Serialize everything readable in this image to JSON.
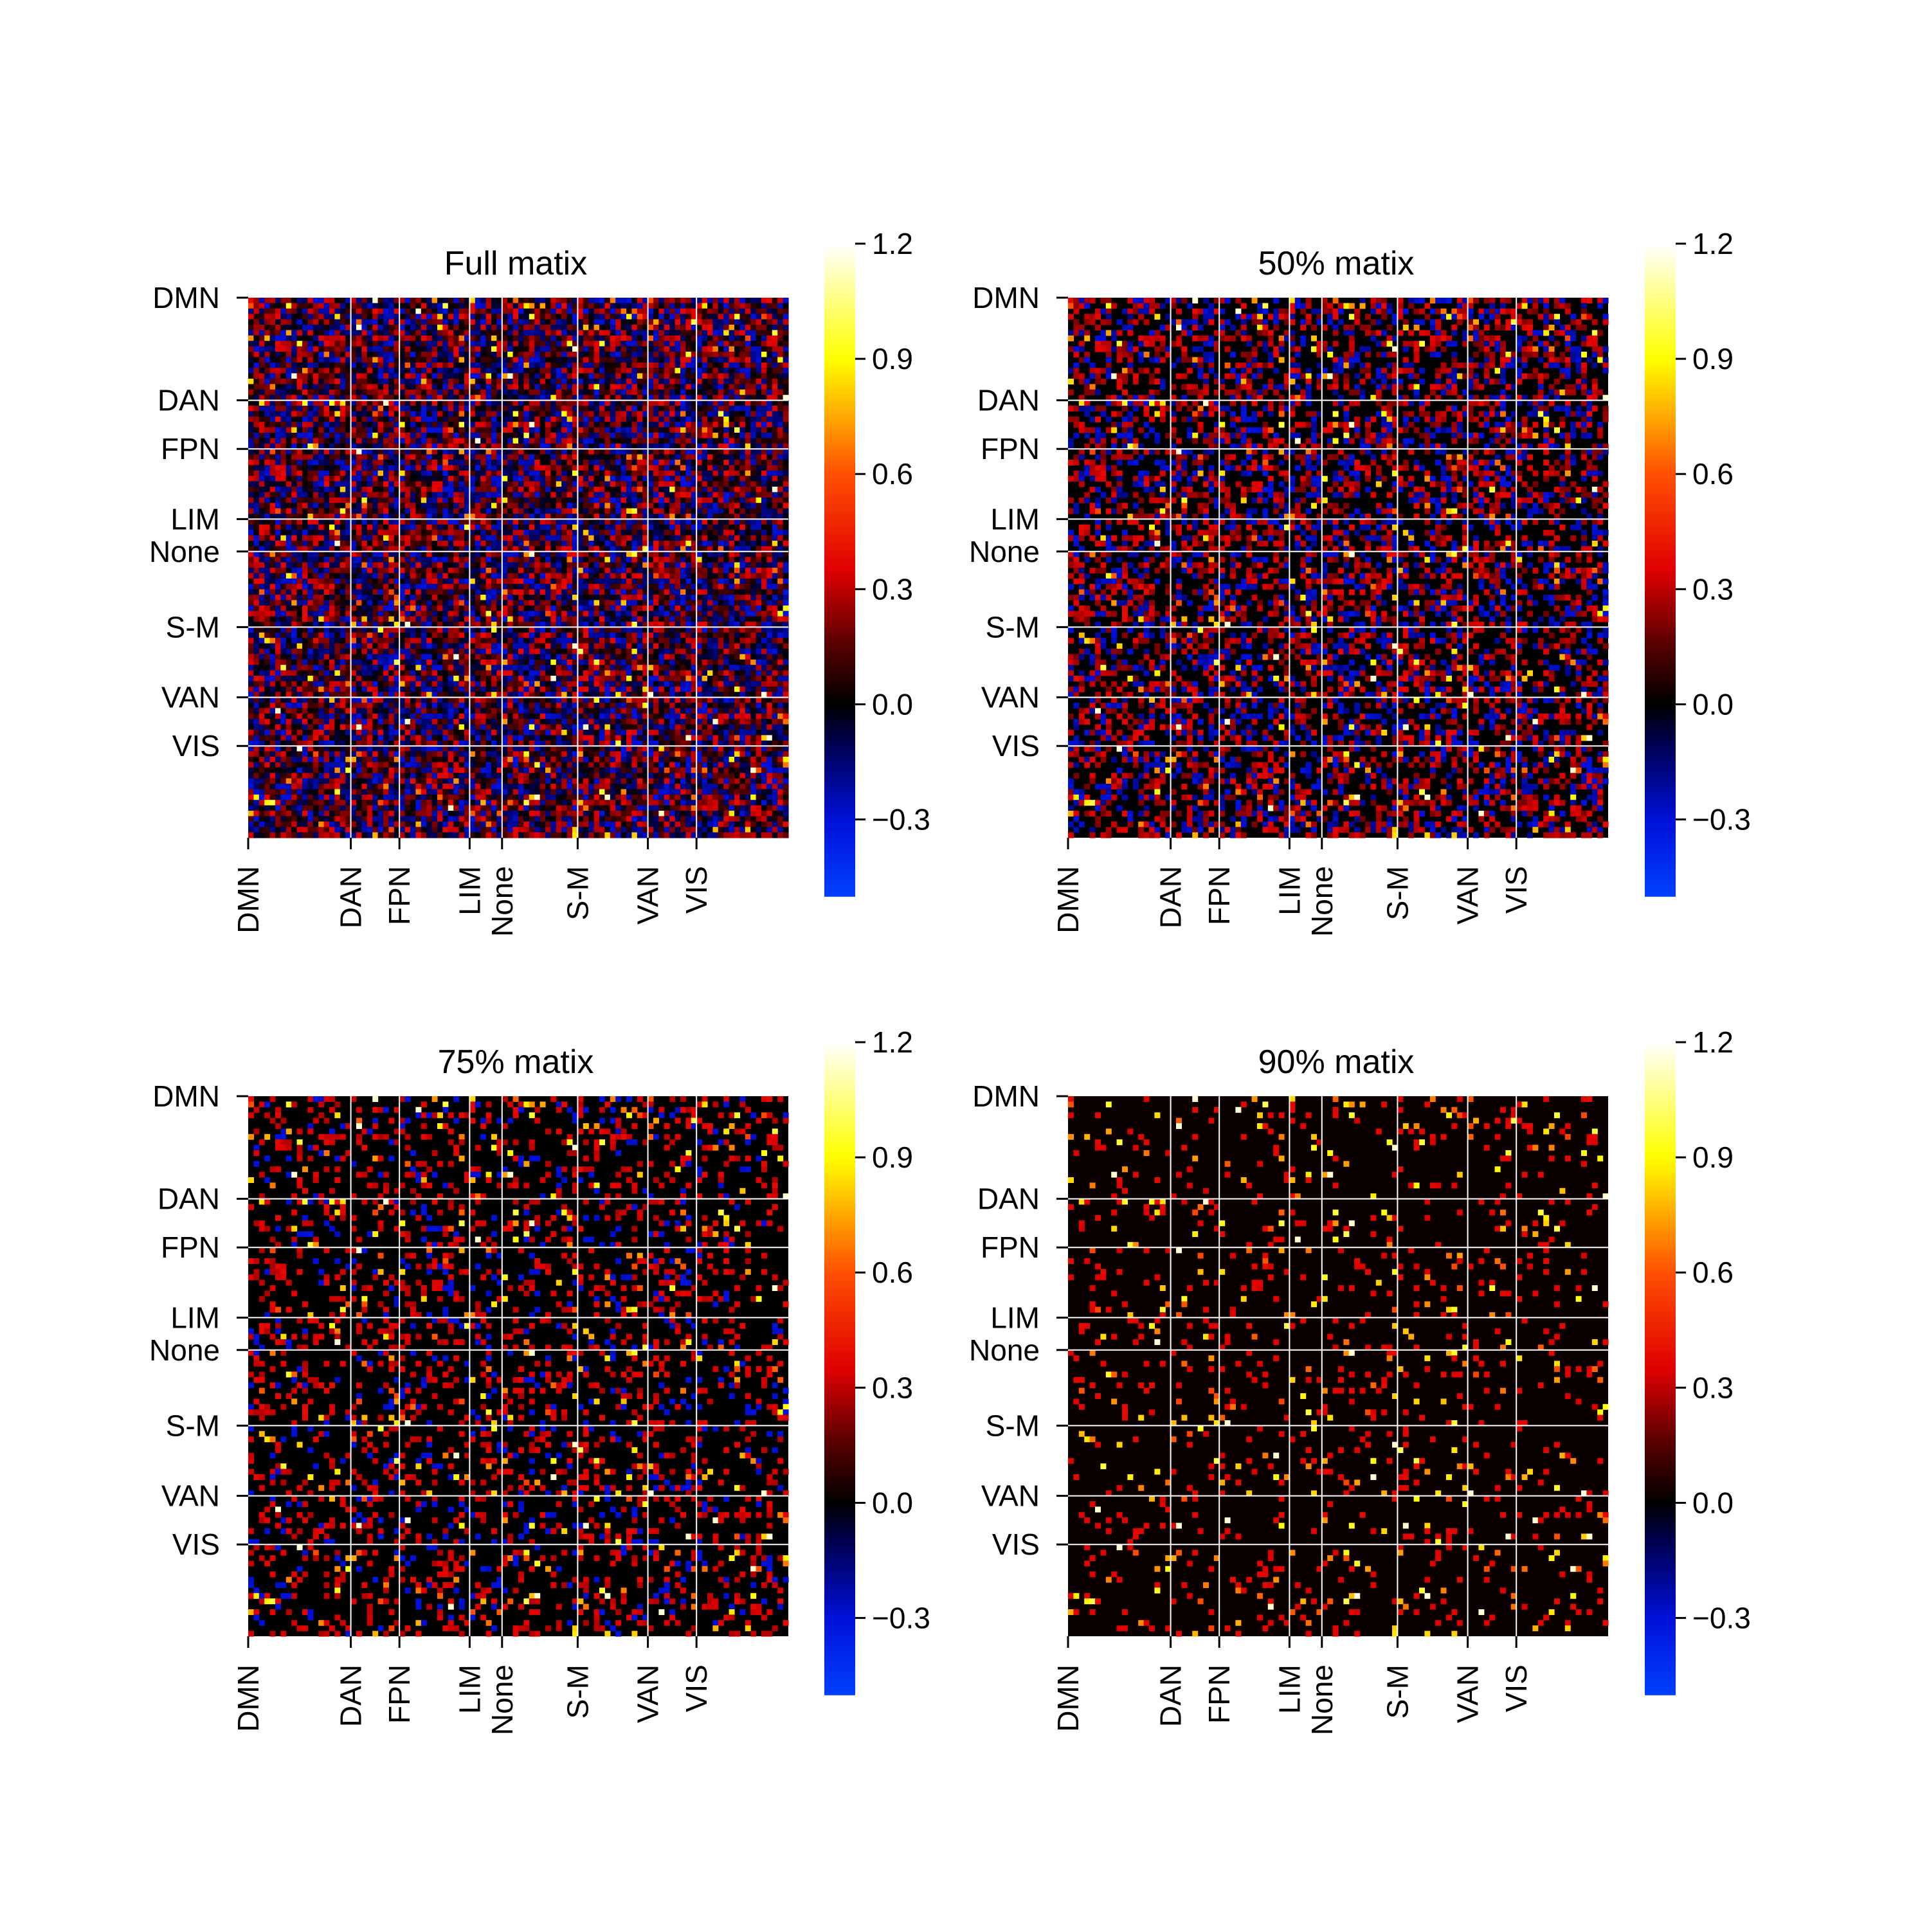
{
  "figure": {
    "background": "#ffffff",
    "gridline_color": "#ffffff",
    "colormap": {
      "name": "blue-black-red-yellow-white",
      "stops": [
        {
          "value": -0.5,
          "color": "#0040ff"
        },
        {
          "value": -0.3,
          "color": "#0010d8"
        },
        {
          "value": -0.1,
          "color": "#000050"
        },
        {
          "value": 0.0,
          "color": "#000000"
        },
        {
          "value": 0.15,
          "color": "#550000"
        },
        {
          "value": 0.35,
          "color": "#e00000"
        },
        {
          "value": 0.6,
          "color": "#ff5000"
        },
        {
          "value": 0.9,
          "color": "#ffff00"
        },
        {
          "value": 1.2,
          "color": "#ffffff"
        }
      ]
    }
  },
  "chart_data": [
    {
      "type": "heatmap",
      "title": "Full matix",
      "threshold_percent": 0,
      "size": 100,
      "groups": [
        "DMN",
        "DAN",
        "FPN",
        "LIM",
        "None",
        "S-M",
        "VAN",
        "VIS"
      ],
      "group_start_index": [
        0,
        19,
        28,
        41,
        47,
        61,
        74,
        83
      ],
      "colorbar": {
        "ticks": [
          "1.2",
          "0.9",
          "0.6",
          "0.3",
          "0.0",
          "−0.3"
        ],
        "vmin": -0.5,
        "vmax": 1.2
      },
      "xlabel": "",
      "ylabel": ""
    },
    {
      "type": "heatmap",
      "title": "50% matix",
      "threshold_percent": 50,
      "size": 100,
      "groups": [
        "DMN",
        "DAN",
        "FPN",
        "LIM",
        "None",
        "S-M",
        "VAN",
        "VIS"
      ],
      "group_start_index": [
        0,
        19,
        28,
        41,
        47,
        61,
        74,
        83
      ],
      "colorbar": {
        "ticks": [
          "1.2",
          "0.9",
          "0.6",
          "0.3",
          "0.0",
          "−0.3"
        ],
        "vmin": -0.5,
        "vmax": 1.2
      },
      "xlabel": "",
      "ylabel": ""
    },
    {
      "type": "heatmap",
      "title": "75% matix",
      "threshold_percent": 75,
      "size": 100,
      "groups": [
        "DMN",
        "DAN",
        "FPN",
        "LIM",
        "None",
        "S-M",
        "VAN",
        "VIS"
      ],
      "group_start_index": [
        0,
        19,
        28,
        41,
        47,
        61,
        74,
        83
      ],
      "colorbar": {
        "ticks": [
          "1.2",
          "0.9",
          "0.6",
          "0.3",
          "0.0",
          "−0.3"
        ],
        "vmin": -0.5,
        "vmax": 1.2
      },
      "xlabel": "",
      "ylabel": ""
    },
    {
      "type": "heatmap",
      "title": "90% matix",
      "threshold_percent": 90,
      "size": 100,
      "groups": [
        "DMN",
        "DAN",
        "FPN",
        "LIM",
        "None",
        "S-M",
        "VAN",
        "VIS"
      ],
      "group_start_index": [
        0,
        19,
        28,
        41,
        47,
        61,
        74,
        83
      ],
      "colorbar": {
        "ticks": [
          "1.2",
          "0.9",
          "0.6",
          "0.3",
          "0.0",
          "−0.3"
        ],
        "vmin": -0.5,
        "vmax": 1.2
      },
      "xlabel": "",
      "ylabel": ""
    }
  ]
}
